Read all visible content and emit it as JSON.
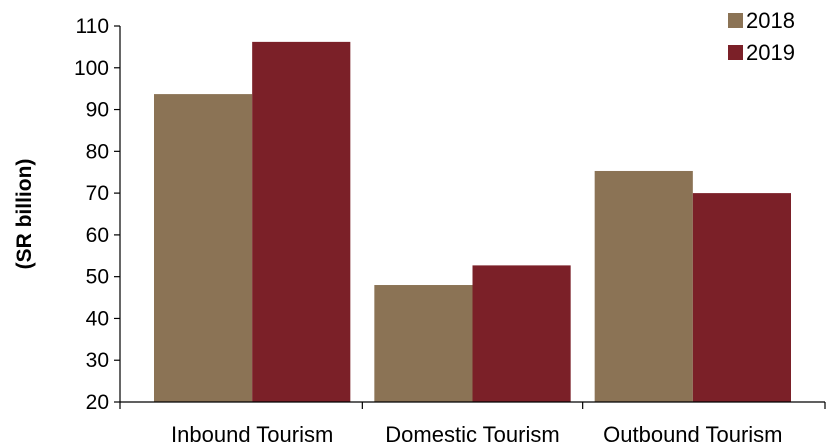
{
  "chart_data": {
    "type": "bar",
    "title": "",
    "xlabel": "",
    "ylabel": "(SR billion)",
    "categories": [
      "Inbound Tourism",
      "Domestic Tourism",
      "Outbound Tourism"
    ],
    "series": [
      {
        "name": "2018",
        "values": [
          93.7,
          48.0,
          75.3
        ],
        "color": "#8B7355"
      },
      {
        "name": "2019",
        "values": [
          106.2,
          52.7,
          70.0
        ],
        "color": "#7B2028"
      }
    ],
    "ylim": [
      20,
      110
    ],
    "yticks": [
      20,
      30,
      40,
      50,
      60,
      70,
      80,
      90,
      100,
      110
    ],
    "grid": false,
    "legend_position": "top-right"
  }
}
